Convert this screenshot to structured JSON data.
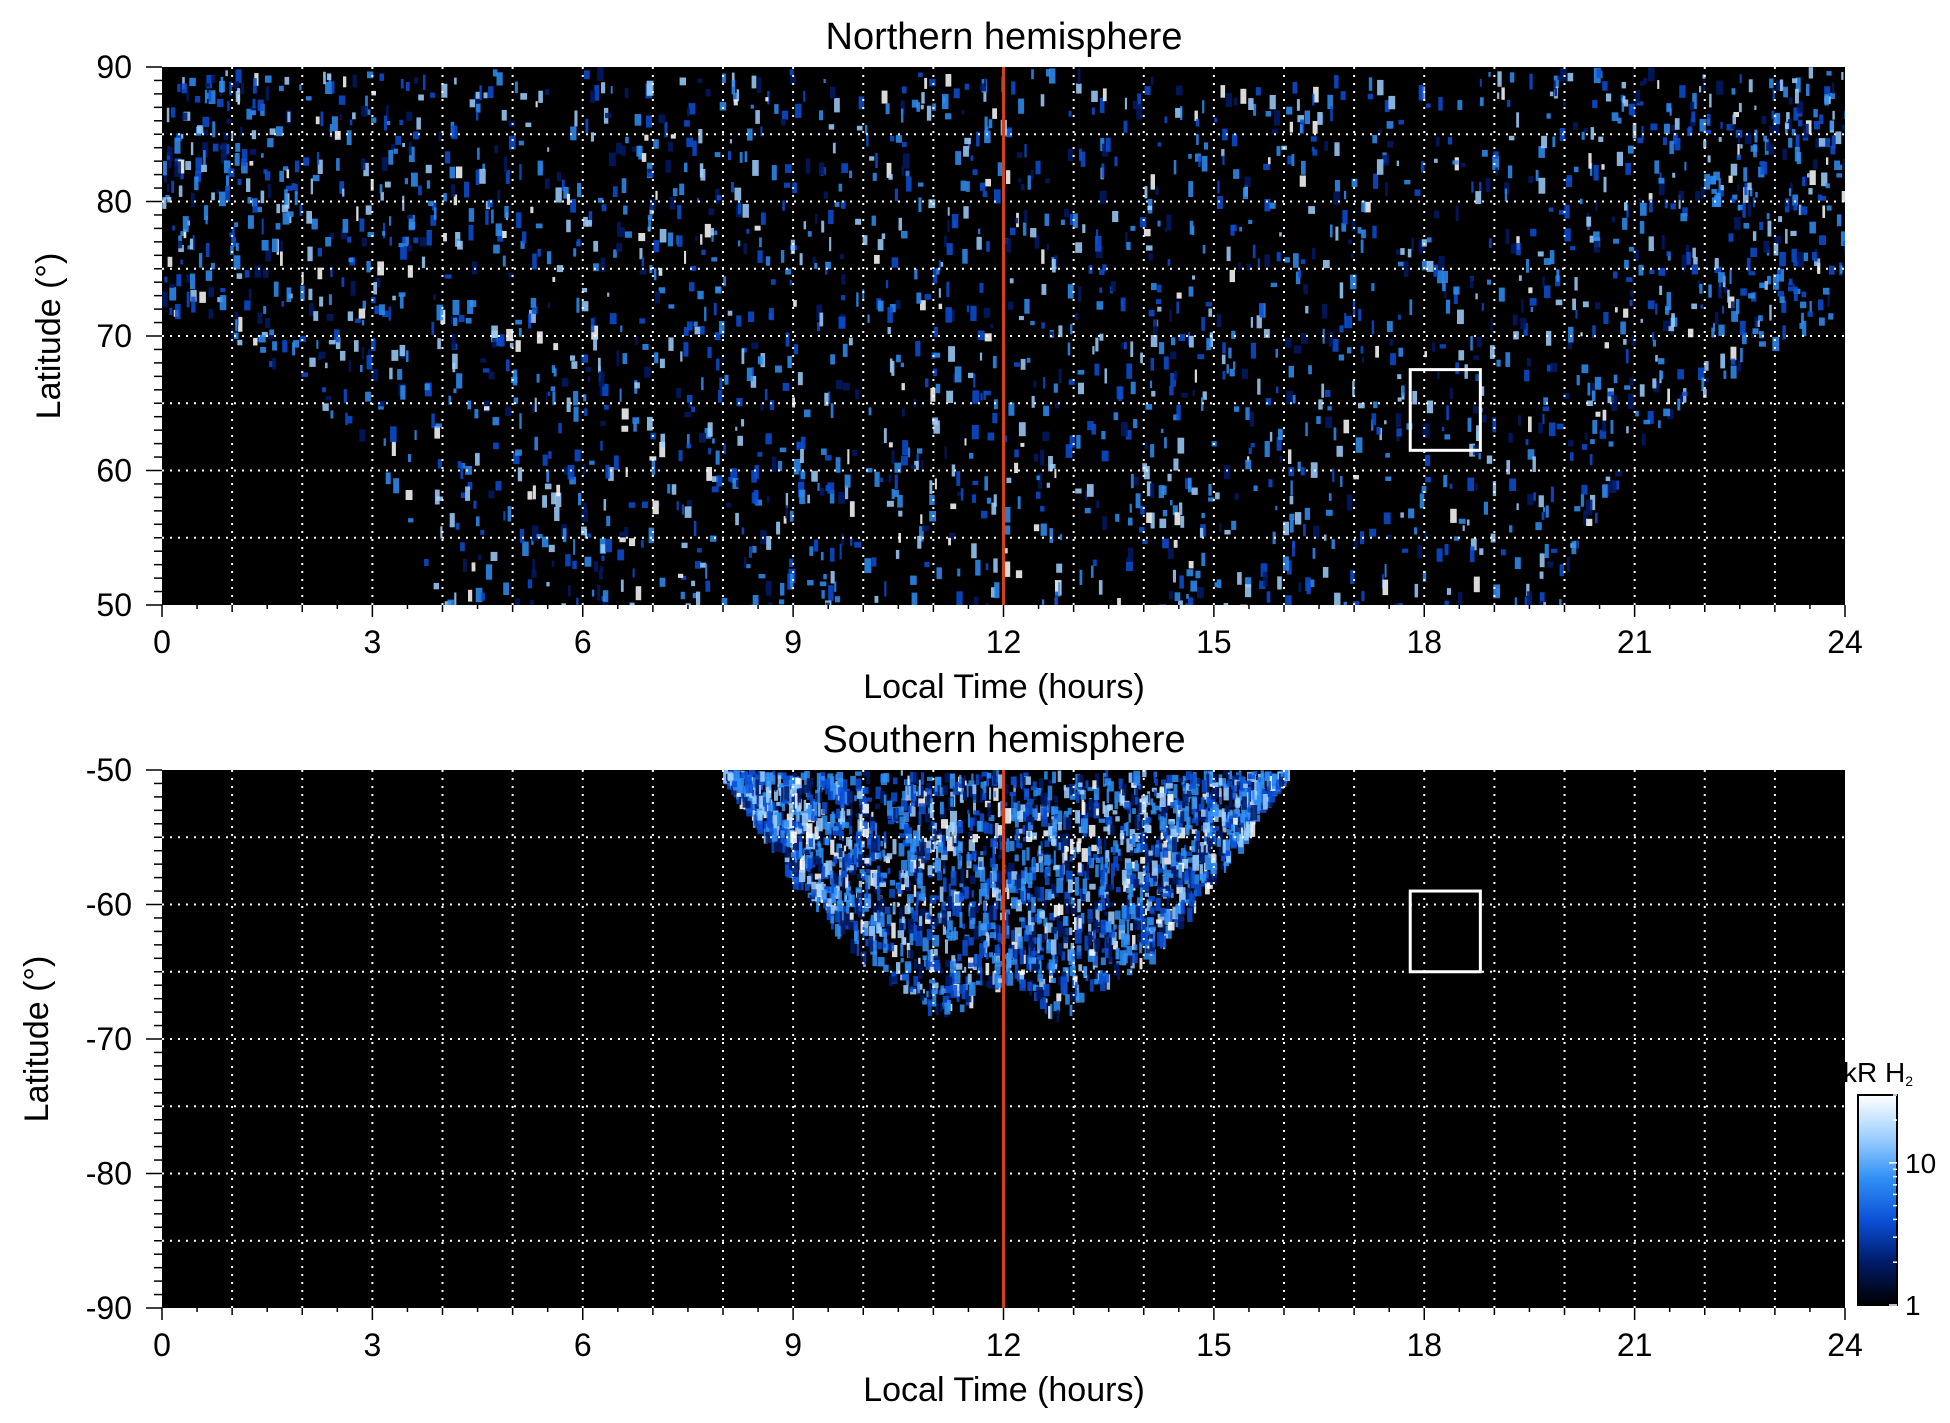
{
  "chart_data": [
    {
      "type": "heatmap",
      "title": "Northern hemisphere",
      "xlabel": "Local Time (hours)",
      "ylabel": "Latitude (°)",
      "xlim": [
        0,
        24
      ],
      "ylim": [
        50,
        90
      ],
      "xticks": [
        0,
        3,
        6,
        9,
        12,
        15,
        18,
        21,
        24
      ],
      "xtick_labels": [
        "0",
        "3",
        "6",
        "9",
        "12",
        "15",
        "18",
        "21",
        "24"
      ],
      "yticks": [
        50,
        60,
        70,
        80,
        90
      ],
      "ytick_labels": [
        "50",
        "60",
        "70",
        "80",
        "90"
      ],
      "grid": true,
      "grid_x_step": 1,
      "grid_y_step": 5,
      "background_color": "#000000",
      "reference_line": {
        "x": 12,
        "color": "#d0421b"
      },
      "box": {
        "x": [
          17.8,
          18.8
        ],
        "y": [
          61.5,
          67.5
        ],
        "color": "#ffffff"
      },
      "coverage": {
        "latitude_limit_by_local_time": [
          [
            0,
            72
          ],
          [
            1,
            70
          ],
          [
            2,
            66
          ],
          [
            3,
            62
          ],
          [
            4,
            50
          ],
          [
            20,
            50
          ],
          [
            21,
            62
          ],
          [
            22,
            66
          ],
          [
            23,
            70
          ],
          [
            24,
            72
          ]
        ]
      }
    },
    {
      "type": "heatmap",
      "title": "Southern hemisphere",
      "xlabel": "Local Time (hours)",
      "ylabel": "Latitude (°)",
      "xlim": [
        0,
        24
      ],
      "ylim": [
        -90,
        -50
      ],
      "xticks": [
        0,
        3,
        6,
        9,
        12,
        15,
        18,
        21,
        24
      ],
      "xtick_labels": [
        "0",
        "3",
        "6",
        "9",
        "12",
        "15",
        "18",
        "21",
        "24"
      ],
      "yticks": [
        -90,
        -80,
        -70,
        -60,
        -50
      ],
      "ytick_labels": [
        "-90",
        "-80",
        "-70",
        "-60",
        "-50"
      ],
      "grid": true,
      "grid_x_step": 1,
      "grid_y_step": 5,
      "background_color": "#000000",
      "reference_line": {
        "x": 12,
        "color": "#d0421b"
      },
      "box": {
        "x": [
          17.8,
          18.8
        ],
        "y": [
          -65,
          -59
        ],
        "color": "#ffffff"
      },
      "coverage": {
        "latitude_limit_by_local_time": [
          [
            8,
            -50
          ],
          [
            9,
            -58
          ],
          [
            10,
            -64
          ],
          [
            11,
            -67.5
          ],
          [
            11.3,
            -68
          ],
          [
            11.7,
            -66
          ],
          [
            12,
            -65.5
          ],
          [
            12.3,
            -66
          ],
          [
            12.7,
            -68
          ],
          [
            13,
            -67.5
          ],
          [
            14,
            -64
          ],
          [
            15,
            -58
          ],
          [
            16,
            -50
          ]
        ]
      }
    }
  ],
  "colorbar": {
    "label": "kR H",
    "label_subscript": "2",
    "scale": "log",
    "range": [
      1,
      30
    ],
    "tick_labels": [
      "1",
      "10"
    ],
    "colors": [
      "#000000",
      "#001a66",
      "#0a4fd6",
      "#2f8ff5",
      "#9fd0ff",
      "#ffffff"
    ]
  }
}
